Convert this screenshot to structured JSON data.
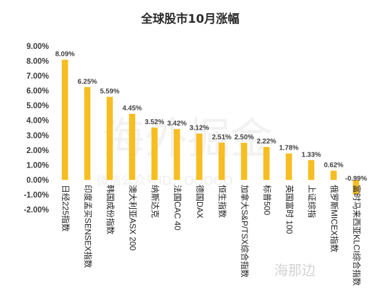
{
  "chart_data": {
    "type": "bar",
    "title": "全球股市10月涨幅",
    "categories": [
      "日经225指数",
      "印度孟买SENSEX指数",
      "韩国成份指数",
      "澳大利亚ASX 200",
      "纳斯达克",
      "法国CAC 40",
      "德国DAX",
      "恒生指数",
      "加拿大S&P/TSX综合指数",
      "标普500",
      "英国富时 100",
      "上证综指",
      "俄罗斯MICEX指数",
      "富时马来西亚KLCI综合指数"
    ],
    "values": [
      8.09,
      6.25,
      5.59,
      4.45,
      3.52,
      3.42,
      3.12,
      2.51,
      2.5,
      2.22,
      1.78,
      1.33,
      0.62,
      -0.99
    ],
    "data_labels": [
      "8.09%",
      "6.25%",
      "5.59%",
      "4.45%",
      "3.52%",
      "3.42%",
      "3.12%",
      "2.51%",
      "2.50%",
      "2.22%",
      "1.78%",
      "1.33%",
      "0.62%",
      "-0.99%"
    ],
    "ylim": [
      -2,
      9
    ],
    "y_ticks": [
      9,
      8,
      7,
      6,
      5,
      4,
      3,
      2,
      1,
      0,
      -1,
      -2
    ],
    "y_tick_labels": [
      "9.00%",
      "8.00%",
      "7.00%",
      "6.00%",
      "5.00%",
      "4.00%",
      "3.00%",
      "2.00%",
      "1.00%",
      "0.00%",
      "-1.00%",
      "-2.00%"
    ],
    "xlabel": "",
    "ylabel": "",
    "grid": false,
    "legend": "none",
    "bar_color": "#F7BD21"
  },
  "watermark": {
    "main": "海外掘金",
    "sub": "微信公众号ID：OOOOO",
    "logo": "海那边"
  }
}
